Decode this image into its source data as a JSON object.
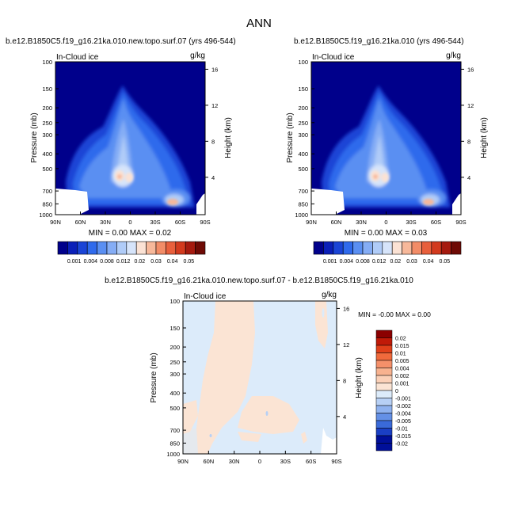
{
  "page_title": "ANN",
  "chart_data": [
    {
      "type": "heatmap",
      "title": "b.e12.B1850C5.f19_g16.21ka.010.new.topo.surf.07 (yrs 496-544)",
      "left_label": "In-Cloud ice",
      "units": "g/kg",
      "xlabel": "",
      "ylabel": "Pressure (mb)",
      "ylabel_right": "Height (km)",
      "x_ticks": [
        "90N",
        "60N",
        "30N",
        "0",
        "30S",
        "60S",
        "90S"
      ],
      "y_ticks": [
        "100",
        "150",
        "200",
        "250",
        "300",
        "400",
        "500",
        "700",
        "850",
        "1000"
      ],
      "y_right_ticks": [
        "16",
        "12",
        "8",
        "4"
      ],
      "ylim": [
        1000,
        100
      ],
      "stats": {
        "min": "0.00",
        "max": "0.02"
      },
      "stats_text": "MIN =   0.00  MAX =   0.02",
      "colorbar": {
        "orientation": "horizontal",
        "labels": [
          "0.001",
          "0.004",
          "0.008",
          "0.012",
          "0.02",
          "0.03",
          "0.04",
          "0.05"
        ]
      }
    },
    {
      "type": "heatmap",
      "title": "b.e12.B1850C5.f19_g16.21ka.010 (yrs 496-544)",
      "left_label": "In-Cloud ice",
      "units": "g/kg",
      "xlabel": "",
      "ylabel": "Pressure (mb)",
      "ylabel_right": "Height (km)",
      "x_ticks": [
        "90N",
        "60N",
        "30N",
        "0",
        "30S",
        "60S",
        "90S"
      ],
      "y_ticks": [
        "100",
        "150",
        "200",
        "250",
        "300",
        "400",
        "500",
        "700",
        "850",
        "1000"
      ],
      "y_right_ticks": [
        "16",
        "12",
        "8",
        "4"
      ],
      "ylim": [
        1000,
        100
      ],
      "stats": {
        "min": "0.00",
        "max": "0.03"
      },
      "stats_text": "MIN =   0.00  MAX =   0.03",
      "colorbar": {
        "orientation": "horizontal",
        "labels": [
          "0.001",
          "0.004",
          "0.008",
          "0.012",
          "0.02",
          "0.03",
          "0.04",
          "0.05"
        ]
      }
    },
    {
      "type": "heatmap",
      "title": "b.e12.B1850C5.f19_g16.21ka.010.new.topo.surf.07 - b.e12.B1850C5.f19_g16.21ka.010",
      "left_label": "In-Cloud ice",
      "units": "g/kg",
      "xlabel": "",
      "ylabel": "Pressure (mb)",
      "ylabel_right": "Height (km)",
      "x_ticks": [
        "90N",
        "60N",
        "30N",
        "0",
        "30S",
        "60S",
        "90S"
      ],
      "y_ticks": [
        "100",
        "150",
        "200",
        "250",
        "300",
        "400",
        "500",
        "700",
        "850",
        "1000"
      ],
      "y_right_ticks": [
        "16",
        "12",
        "8",
        "4"
      ],
      "ylim": [
        1000,
        100
      ],
      "stats": {
        "min": "-0.00",
        "max": "0.00"
      },
      "stats_text": "MIN =  -0.00  MAX =   0.00",
      "colorbar": {
        "orientation": "vertical",
        "labels": [
          "0.02",
          "0.015",
          "0.01",
          "0.005",
          "0.004",
          "0.002",
          "0.001",
          "0",
          "-0.001",
          "-0.002",
          "-0.004",
          "-0.005",
          "-0.01",
          "-0.015",
          "-0.02"
        ]
      }
    }
  ],
  "colors": {
    "abs_scale": [
      "#00008b",
      "#0a1fb8",
      "#1a44d6",
      "#2f6aec",
      "#5a8ff2",
      "#85adf5",
      "#b0ccf8",
      "#d6e4fa",
      "#fbe2d4",
      "#f7b89a",
      "#f28c67",
      "#e85f3c",
      "#d23a1e",
      "#a51a0f",
      "#6e0a05"
    ],
    "diff_scale": [
      "#8b0000",
      "#c01a08",
      "#e0401a",
      "#f06a3c",
      "#f5906a",
      "#f8b28f",
      "#fbd0b7",
      "#fbe4d4",
      "#dcebfa",
      "#b7d0f5",
      "#8fb2ef",
      "#6490e6",
      "#3a6ad9",
      "#1a3fc4",
      "#000f99"
    ]
  }
}
